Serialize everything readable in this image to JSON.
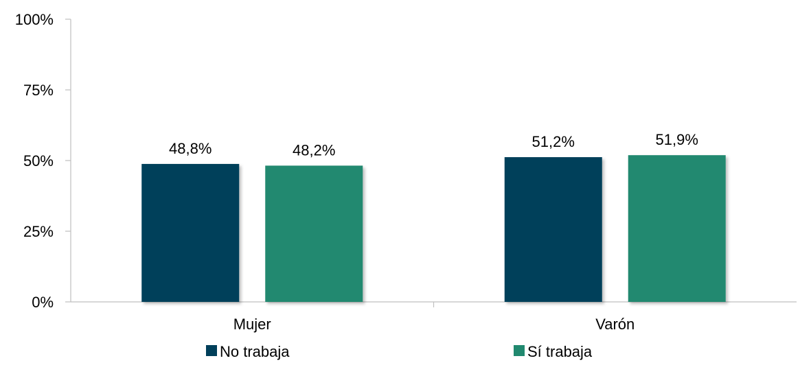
{
  "chart_data": {
    "type": "bar",
    "title": "",
    "xlabel": "",
    "ylabel": "",
    "categories": [
      "Mujer",
      "Varón"
    ],
    "series": [
      {
        "name": "No trabaja",
        "values": [
          48.8,
          51.2
        ],
        "labels": [
          "48,8%",
          "51,2%"
        ],
        "color": "#003f5a"
      },
      {
        "name": "Sí trabaja",
        "values": [
          48.2,
          51.9
        ],
        "labels": [
          "48,2%",
          "51,9%"
        ],
        "color": "#21896f"
      }
    ],
    "ylim": [
      0,
      100
    ],
    "yticks": [
      0,
      25,
      50,
      75,
      100
    ],
    "ytick_labels": [
      "0%",
      "25%",
      "50%",
      "75%",
      "100%"
    ],
    "grid": false,
    "legend": "bottom"
  }
}
